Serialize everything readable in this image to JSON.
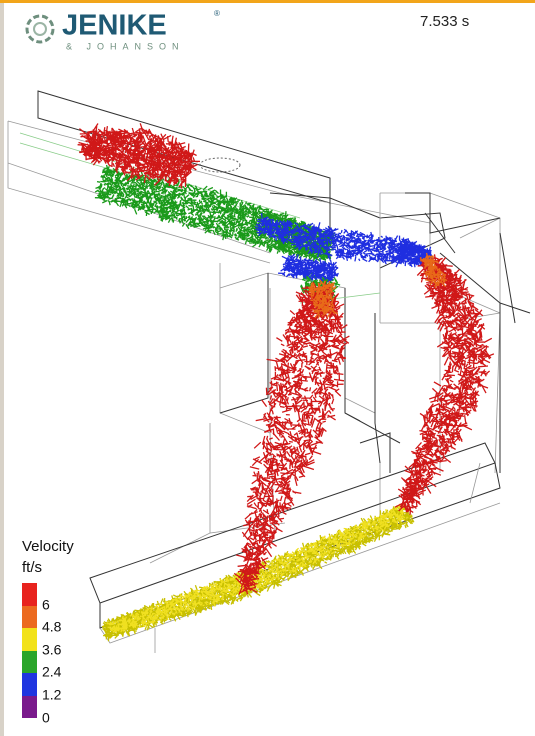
{
  "header": {
    "logo": "JENIKE",
    "logo_mark": "®",
    "logo_sub": "& JOHANSON",
    "time": "7.533 s"
  },
  "legend": {
    "title": "Velocity",
    "unit": "ft/s",
    "labels": [
      "6",
      "4.8",
      "3.6",
      "2.4",
      "1.2",
      "0"
    ]
  }
}
